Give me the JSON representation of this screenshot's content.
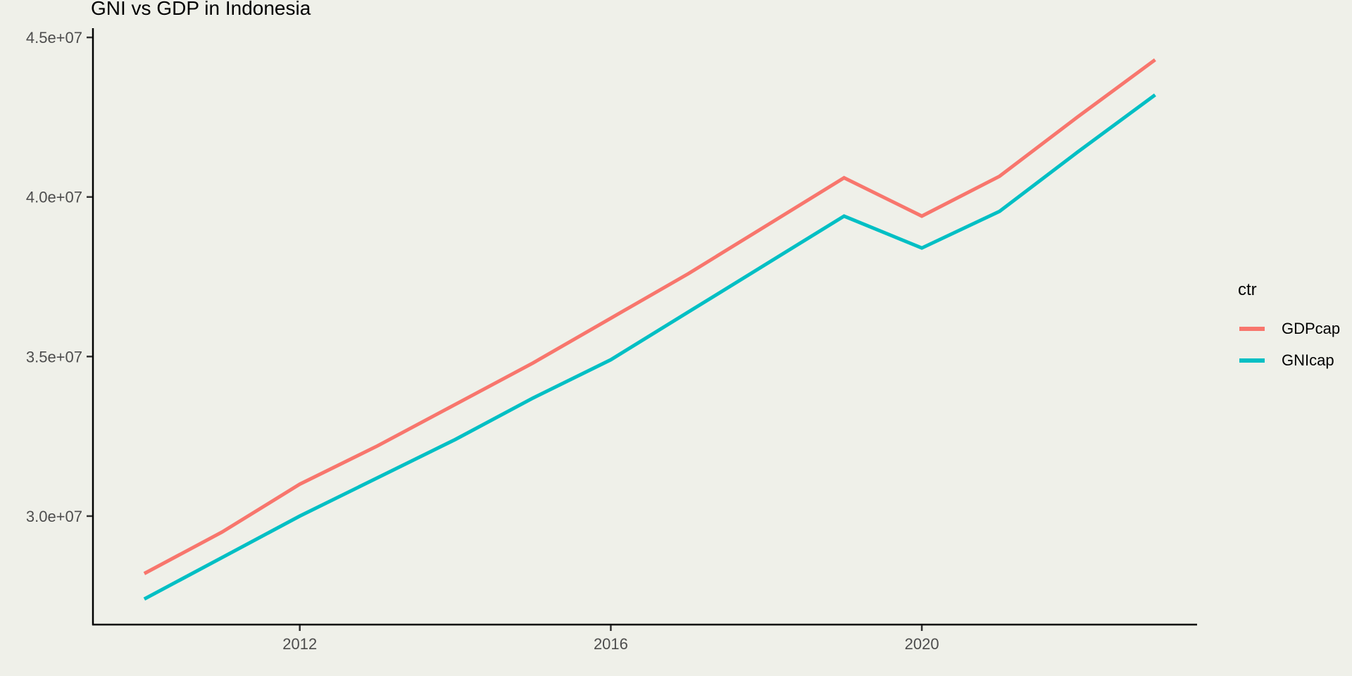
{
  "page": {
    "background_color": "#EFF0E9"
  },
  "header": {
    "title": "GNI vs GDP in Indonesia"
  },
  "chart_data": {
    "type": "line",
    "title": "GNI vs GDP in Indonesia",
    "xlabel": "",
    "ylabel": "",
    "x": [
      2010,
      2011,
      2012,
      2013,
      2014,
      2015,
      2016,
      2017,
      2018,
      2019,
      2020,
      2021,
      2022,
      2023
    ],
    "series": [
      {
        "name": "GDPcap",
        "color": "#F8766D",
        "values": [
          28200000,
          29500000,
          31000000,
          32200000,
          33500000,
          34800000,
          36200000,
          37600000,
          39100000,
          40600000,
          39400000,
          40650000,
          42500000,
          44300000
        ]
      },
      {
        "name": "GNIcap",
        "color": "#00BFC4",
        "values": [
          27400000,
          28700000,
          30000000,
          31200000,
          32400000,
          33700000,
          34900000,
          36400000,
          37900000,
          39400000,
          38400000,
          39550000,
          41400000,
          43200000
        ]
      }
    ],
    "x_ticks": [
      {
        "value": 2012,
        "label": "2012"
      },
      {
        "value": 2016,
        "label": "2016"
      },
      {
        "value": 2020,
        "label": "2020"
      }
    ],
    "y_ticks": [
      {
        "value": 30000000,
        "label": "3.0e+07"
      },
      {
        "value": 35000000,
        "label": "3.5e+07"
      },
      {
        "value": 40000000,
        "label": "4.0e+07"
      },
      {
        "value": 45000000,
        "label": "4.5e+07"
      }
    ],
    "xlim": [
      2009.34,
      2023.54
    ],
    "ylim": [
      26600000,
      45400000
    ],
    "grid": false,
    "legend": {
      "title": "ctr",
      "position": "right",
      "entries": [
        "GDPcap",
        "GNIcap"
      ]
    },
    "colors": {
      "axis_line": "#000000",
      "tick_mark": "#333333",
      "tick_label": "#4D4D4D",
      "background": "#EFF0E9"
    }
  }
}
